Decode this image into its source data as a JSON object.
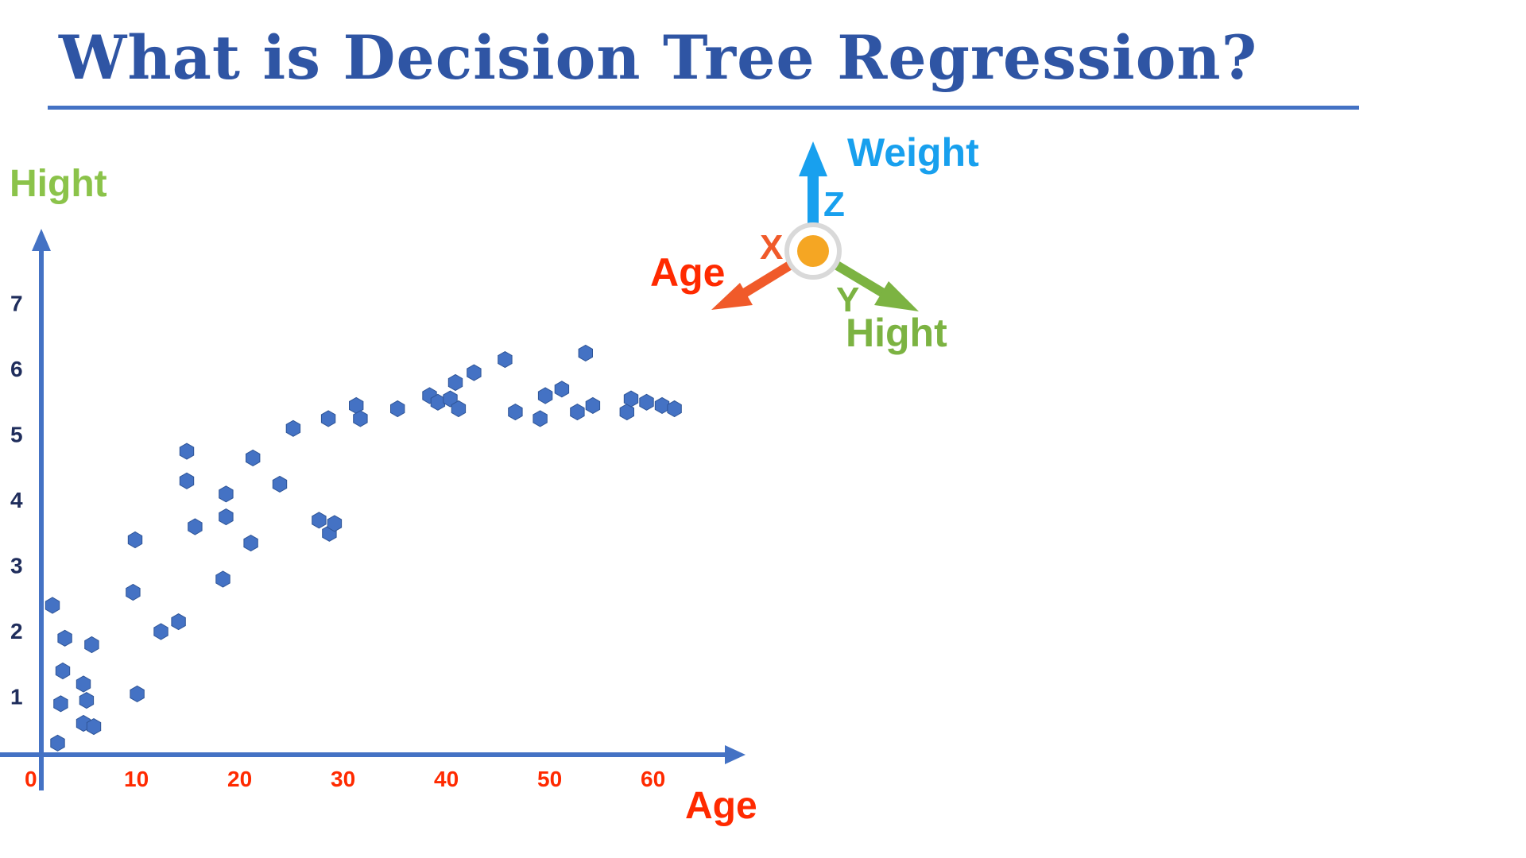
{
  "slide": {
    "title": "What is Decision Tree Regression?"
  },
  "axes_widget": {
    "z_letter": "Z",
    "z_name": "Weight",
    "x_letter": "X",
    "x_name": "Age",
    "y_letter": "Y",
    "y_name": "Hight",
    "colors": {
      "z": "#18a0ee",
      "x": "#f05a2a",
      "y": "#7cb342",
      "origin": "#f5a623"
    }
  },
  "chart_data": {
    "type": "scatter",
    "title": "",
    "xlabel": "Age",
    "ylabel": "Hight",
    "xlim": [
      0,
      69
    ],
    "ylim": [
      0,
      7.9
    ],
    "x_ticks": [
      "0",
      "10",
      "20",
      "30",
      "40",
      "50",
      "60"
    ],
    "y_ticks": [
      "1",
      "2",
      "3",
      "4",
      "5",
      "6",
      "7"
    ],
    "grid": false,
    "colors": {
      "points": "#4472c4",
      "axis": "#4472c4",
      "x_labels": "#ff2a00",
      "y_labels": "#1f2d5c",
      "ylabel": "#8bc34a",
      "xlabel": "#ff2a00"
    },
    "series": [
      {
        "points": [
          [
            2.0,
            2.4
          ],
          [
            2.5,
            0.3
          ],
          [
            2.8,
            0.9
          ],
          [
            3.0,
            1.4
          ],
          [
            3.2,
            1.9
          ],
          [
            5.0,
            1.2
          ],
          [
            5.0,
            0.6
          ],
          [
            5.3,
            0.95
          ],
          [
            5.8,
            1.8
          ],
          [
            6.0,
            0.55
          ],
          [
            9.8,
            2.6
          ],
          [
            10.0,
            3.4
          ],
          [
            10.2,
            1.05
          ],
          [
            12.5,
            2.0
          ],
          [
            14.2,
            2.15
          ],
          [
            15.0,
            4.75
          ],
          [
            15.0,
            4.3
          ],
          [
            15.8,
            3.6
          ],
          [
            18.5,
            2.8
          ],
          [
            18.8,
            4.1
          ],
          [
            18.8,
            3.75
          ],
          [
            21.2,
            3.35
          ],
          [
            21.4,
            4.65
          ],
          [
            24.0,
            4.25
          ],
          [
            25.3,
            5.1
          ],
          [
            27.8,
            3.7
          ],
          [
            28.7,
            5.25
          ],
          [
            28.8,
            3.5
          ],
          [
            29.3,
            3.65
          ],
          [
            31.4,
            5.45
          ],
          [
            31.8,
            5.25
          ],
          [
            35.4,
            5.4
          ],
          [
            38.5,
            5.6
          ],
          [
            39.3,
            5.5
          ],
          [
            40.5,
            5.55
          ],
          [
            41.0,
            5.8
          ],
          [
            41.3,
            5.4
          ],
          [
            42.8,
            5.95
          ],
          [
            45.8,
            6.15
          ],
          [
            46.8,
            5.35
          ],
          [
            49.2,
            5.25
          ],
          [
            49.7,
            5.6
          ],
          [
            51.3,
            5.7
          ],
          [
            52.8,
            5.35
          ],
          [
            53.6,
            6.25
          ],
          [
            54.3,
            5.45
          ],
          [
            57.6,
            5.35
          ],
          [
            58.0,
            5.55
          ],
          [
            59.5,
            5.5
          ],
          [
            61.0,
            5.45
          ],
          [
            62.2,
            5.4
          ]
        ]
      }
    ]
  }
}
